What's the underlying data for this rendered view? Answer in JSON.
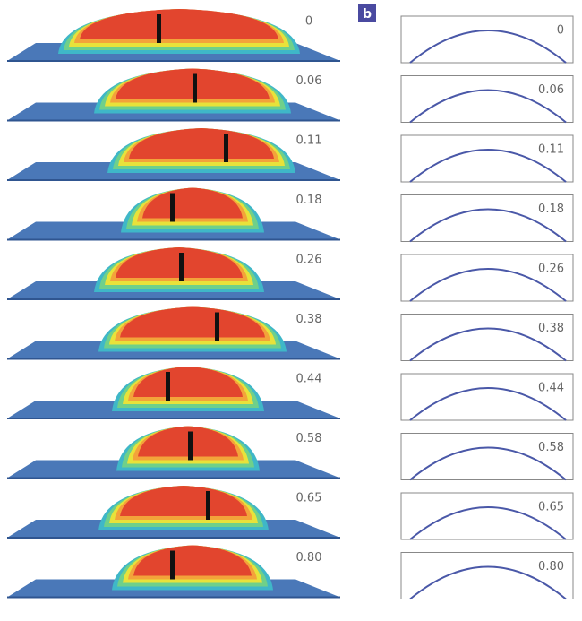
{
  "panel_label": "b",
  "left_labels": [
    "0",
    "0.06",
    "0.11",
    "0.18",
    "0.26",
    "0.38",
    "0.44",
    "0.58",
    "0.65",
    "0.80"
  ],
  "right_labels": [
    "0",
    "0.06",
    "0.11",
    "0.18",
    "0.26",
    "0.38",
    "0.44",
    "0.58",
    "0.65",
    "0.80"
  ]
}
